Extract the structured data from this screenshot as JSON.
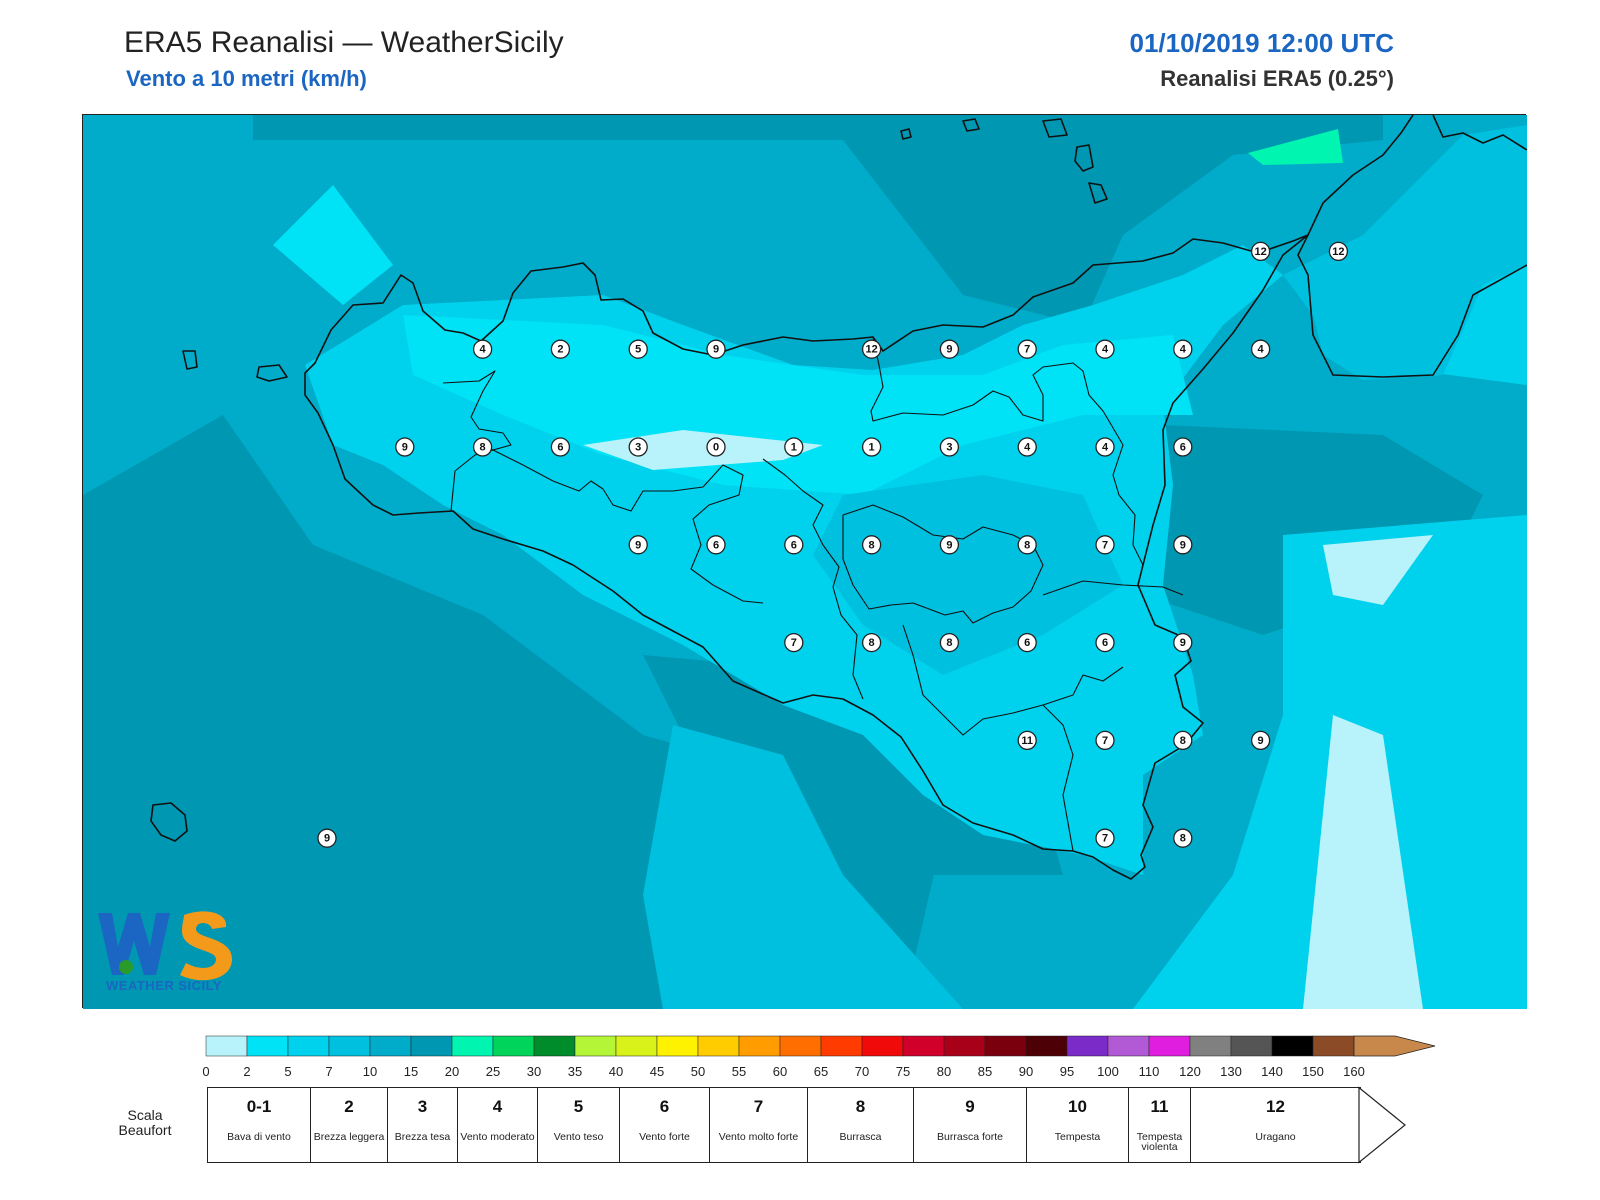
{
  "header": {
    "title": "ERA5 Reanalisi — WeatherSicily",
    "subtitle": "Vento a 10 metri (km/h)",
    "datetime": "01/10/2019 12:00 UTC",
    "model": "Reanalisi ERA5 (0.25°)"
  },
  "logo": {
    "text": "WEATHER SICILY",
    "icon": "weather-sicily-logo-icon"
  },
  "colors": {
    "sea_dark": "#0097b2",
    "sea_mid": "#00b4d4",
    "land_light": "#00d2ee",
    "land_lighter": "#00e2f6",
    "calm": "#b8f2fa",
    "accent": "#1a66c2",
    "coast": "#111111"
  },
  "stations": [
    {
      "lon": 12.59,
      "lat": 38.0,
      "v": "9"
    },
    {
      "lon": 13.09,
      "lat": 38.0,
      "v": "8"
    },
    {
      "lon": 13.59,
      "lat": 38.0,
      "v": "6"
    },
    {
      "lon": 14.09,
      "lat": 38.0,
      "v": "3"
    },
    {
      "lon": 14.59,
      "lat": 38.0,
      "v": "0"
    },
    {
      "lon": 15.09,
      "lat": 38.0,
      "v": "1"
    },
    {
      "lon": 15.59,
      "lat": 38.0,
      "v": "1"
    },
    {
      "lon": 16.09,
      "lat": 38.0,
      "v": "3"
    },
    {
      "lon": 16.59,
      "lat": 38.0,
      "v": "4"
    },
    {
      "lon": 17.09,
      "lat": 38.0,
      "v": "4"
    },
    {
      "lon": 17.59,
      "lat": 38.0,
      "v": "6"
    },
    {
      "lon": 13.09,
      "lat": 38.5,
      "v": "4"
    },
    {
      "lon": 13.59,
      "lat": 38.5,
      "v": "2"
    },
    {
      "lon": 14.09,
      "lat": 38.5,
      "v": "5"
    },
    {
      "lon": 14.59,
      "lat": 38.5,
      "v": "9"
    },
    {
      "lon": 15.59,
      "lat": 38.5,
      "v": "12"
    },
    {
      "lon": 16.09,
      "lat": 38.5,
      "v": "9"
    },
    {
      "lon": 16.59,
      "lat": 38.5,
      "v": "7"
    },
    {
      "lon": 17.09,
      "lat": 38.5,
      "v": "4"
    },
    {
      "lon": 17.59,
      "lat": 38.5,
      "v": "4"
    },
    {
      "lon": 18.09,
      "lat": 38.5,
      "v": "4"
    },
    {
      "lon": 18.09,
      "lat": 39.0,
      "v": "12"
    },
    {
      "lon": 18.59,
      "lat": 39.0,
      "v": "12"
    },
    {
      "lon": 14.09,
      "lat": 37.5,
      "v": "9"
    },
    {
      "lon": 14.59,
      "lat": 37.5,
      "v": "6"
    },
    {
      "lon": 15.09,
      "lat": 37.5,
      "v": "6"
    },
    {
      "lon": 15.59,
      "lat": 37.5,
      "v": "8"
    },
    {
      "lon": 16.09,
      "lat": 37.5,
      "v": "9"
    },
    {
      "lon": 16.59,
      "lat": 37.5,
      "v": "8"
    },
    {
      "lon": 17.09,
      "lat": 37.5,
      "v": "7"
    },
    {
      "lon": 17.59,
      "lat": 37.5,
      "v": "9"
    },
    {
      "lon": 15.09,
      "lat": 37.0,
      "v": "7"
    },
    {
      "lon": 15.59,
      "lat": 37.0,
      "v": "8"
    },
    {
      "lon": 16.09,
      "lat": 37.0,
      "v": "8"
    },
    {
      "lon": 16.59,
      "lat": 37.0,
      "v": "6"
    },
    {
      "lon": 17.09,
      "lat": 37.0,
      "v": "6"
    },
    {
      "lon": 17.59,
      "lat": 37.0,
      "v": "9"
    },
    {
      "lon": 16.59,
      "lat": 36.5,
      "v": "11"
    },
    {
      "lon": 17.09,
      "lat": 36.5,
      "v": "7"
    },
    {
      "lon": 17.59,
      "lat": 36.5,
      "v": "8"
    },
    {
      "lon": 18.09,
      "lat": 36.5,
      "v": "9"
    },
    {
      "lon": 17.09,
      "lat": 36.0,
      "v": "7"
    },
    {
      "lon": 17.59,
      "lat": 36.0,
      "v": "8"
    },
    {
      "lon": 12.09,
      "lat": 36.0,
      "v": "9"
    }
  ],
  "colorbar": {
    "ticks": [
      "0",
      "2",
      "5",
      "7",
      "10",
      "15",
      "20",
      "25",
      "30",
      "35",
      "40",
      "45",
      "50",
      "55",
      "60",
      "65",
      "70",
      "75",
      "80",
      "85",
      "90",
      "95",
      "100",
      "110",
      "120",
      "130",
      "140",
      "150",
      "160"
    ],
    "colors": [
      "#b8f2fa",
      "#00e2f6",
      "#00d2ee",
      "#00c0e0",
      "#00acc9",
      "#0097b2",
      "#00f5b0",
      "#00d45a",
      "#008c2a",
      "#b4f538",
      "#d8f21a",
      "#fff200",
      "#ffcc00",
      "#ff9d00",
      "#ff6e00",
      "#ff3b00",
      "#f00a0a",
      "#d0002a",
      "#a80018",
      "#7a000e",
      "#4d0005",
      "#7b2bc8",
      "#b25ad6",
      "#e01ee0",
      "#808080",
      "#555555",
      "#000000",
      "#8a4b26",
      "#c8884c"
    ]
  },
  "beaufort": {
    "label": "Scala Beaufort",
    "cells": [
      {
        "num": "0-1",
        "desc": "Bava di vento"
      },
      {
        "num": "2",
        "desc": "Brezza leggera"
      },
      {
        "num": "3",
        "desc": "Brezza tesa"
      },
      {
        "num": "4",
        "desc": "Vento moderato"
      },
      {
        "num": "5",
        "desc": "Vento teso"
      },
      {
        "num": "6",
        "desc": "Vento forte"
      },
      {
        "num": "7",
        "desc": "Vento molto forte"
      },
      {
        "num": "8",
        "desc": "Burrasca"
      },
      {
        "num": "9",
        "desc": "Burrasca forte"
      },
      {
        "num": "10",
        "desc": "Tempesta"
      },
      {
        "num": "11",
        "desc": "Tempesta violenta"
      },
      {
        "num": "12",
        "desc": "Uragano"
      }
    ]
  }
}
